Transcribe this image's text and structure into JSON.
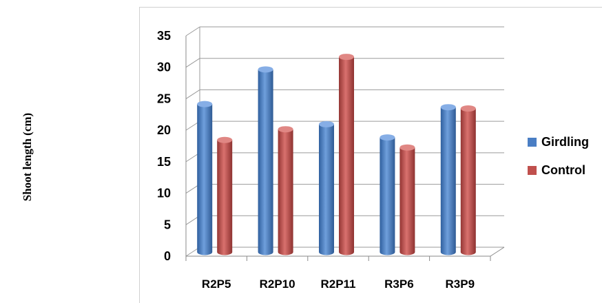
{
  "chart_data": {
    "type": "bar",
    "ylabel": "Shoot length (cm)",
    "categories": [
      "R2P5",
      "R2P10",
      "R2P11",
      "R3P6",
      "R3P9"
    ],
    "series": [
      {
        "name": "Girdling",
        "values": [
          23.5,
          29,
          20.3,
          18.2,
          23
        ]
      },
      {
        "name": "Control",
        "values": [
          17.8,
          19.5,
          31,
          16.6,
          22.8
        ]
      }
    ],
    "yticks": [
      "0",
      "5",
      "10",
      "15",
      "20",
      "25",
      "30",
      "35"
    ],
    "ylim": [
      0,
      35
    ],
    "grid": true,
    "legend": "right",
    "colors": {
      "Girdling": "#4a7ec4",
      "Control": "#c0504d"
    }
  }
}
